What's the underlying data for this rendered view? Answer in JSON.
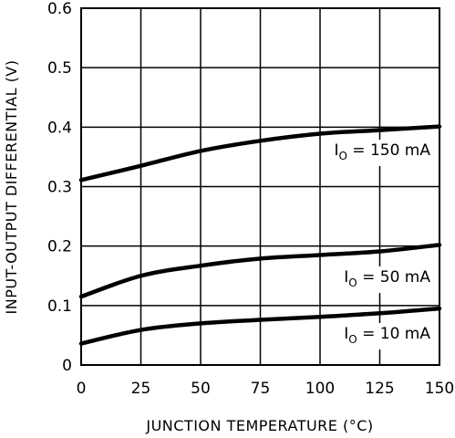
{
  "chart_data": {
    "type": "line",
    "title": "",
    "xlabel": "JUNCTION TEMPERATURE (°C)",
    "ylabel": "INPUT-OUTPUT DIFFERENTIAL (V)",
    "xlim": [
      0,
      150
    ],
    "ylim": [
      0,
      0.6
    ],
    "x_ticks": [
      0,
      25,
      50,
      75,
      100,
      125,
      150
    ],
    "y_ticks": [
      0,
      0.1,
      0.2,
      0.3,
      0.4,
      0.5,
      0.6
    ],
    "x_tick_labels": [
      "0",
      "25",
      "50",
      "75",
      "100",
      "125",
      "150"
    ],
    "y_tick_labels": [
      "0",
      "0.1",
      "0.2",
      "0.3",
      "0.4",
      "0.5",
      "0.6"
    ],
    "grid": true,
    "series": [
      {
        "name": "IO = 150 mA",
        "label_main": "I",
        "label_sub": "O",
        "label_rest": " = 150 mA",
        "x": [
          0,
          25,
          50,
          75,
          100,
          125,
          150
        ],
        "values": [
          0.311,
          0.335,
          0.36,
          0.377,
          0.389,
          0.395,
          0.401
        ]
      },
      {
        "name": "IO = 50 mA",
        "label_main": "I",
        "label_sub": "O",
        "label_rest": " = 50 mA",
        "x": [
          0,
          25,
          50,
          75,
          100,
          125,
          150
        ],
        "values": [
          0.115,
          0.15,
          0.167,
          0.179,
          0.185,
          0.191,
          0.202
        ]
      },
      {
        "name": "IO = 10 mA",
        "label_main": "I",
        "label_sub": "O",
        "label_rest": " = 10 mA",
        "x": [
          0,
          25,
          50,
          75,
          100,
          125,
          150
        ],
        "values": [
          0.036,
          0.059,
          0.07,
          0.076,
          0.081,
          0.087,
          0.095
        ]
      }
    ]
  }
}
